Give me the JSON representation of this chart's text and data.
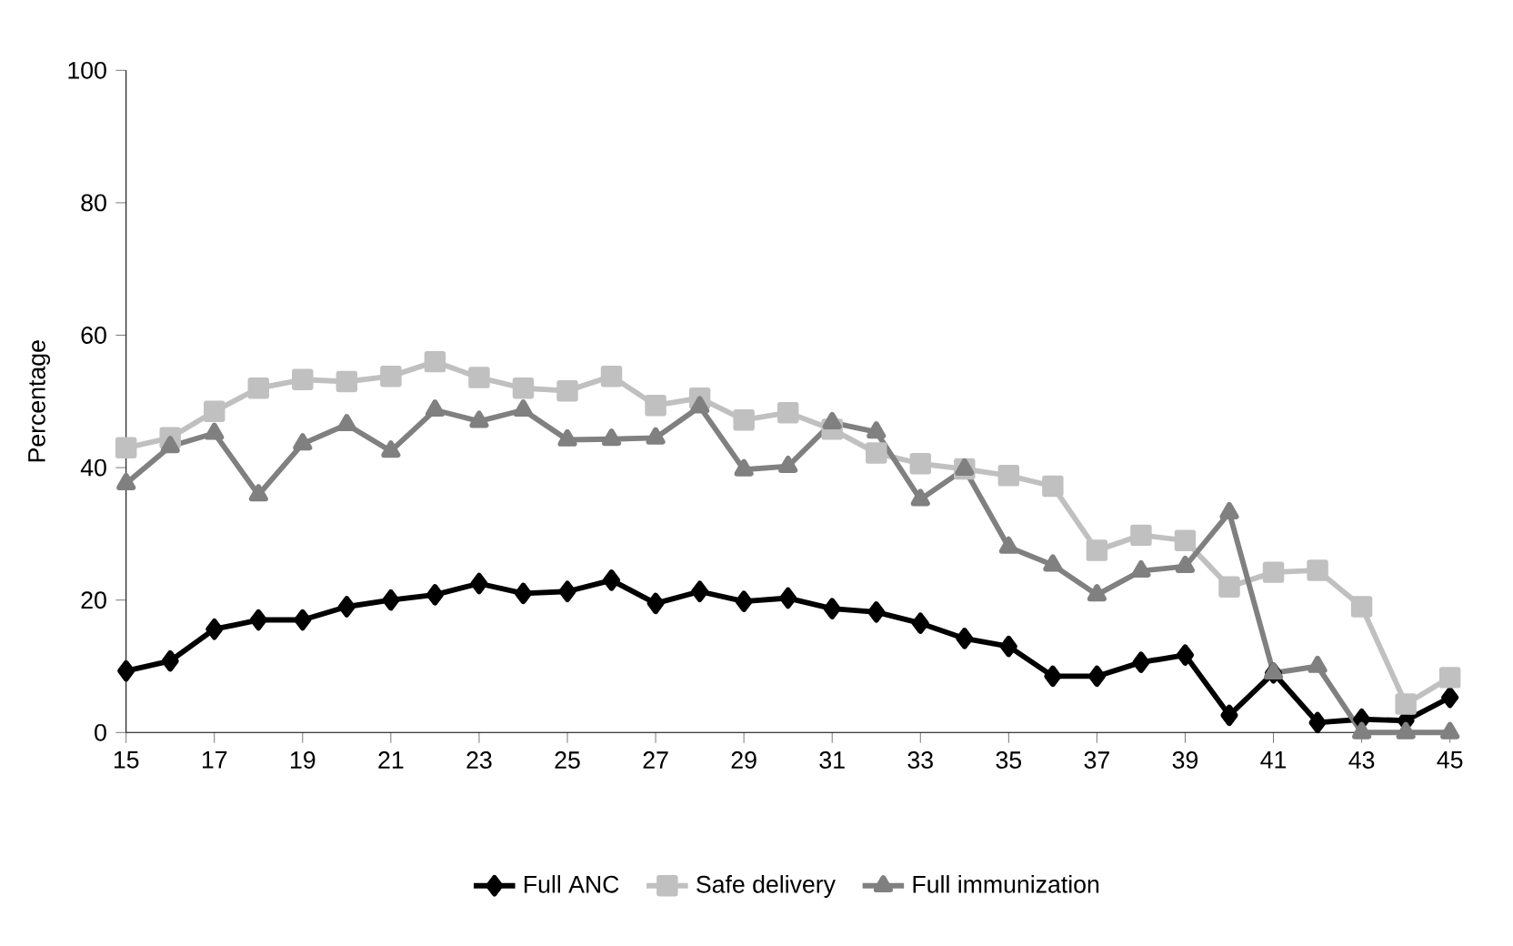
{
  "chart_data": {
    "type": "line",
    "ylabel": "Percentage",
    "x": [
      15,
      16,
      17,
      18,
      19,
      20,
      21,
      22,
      23,
      24,
      25,
      26,
      27,
      28,
      29,
      30,
      31,
      32,
      33,
      34,
      35,
      36,
      37,
      38,
      39,
      40,
      41,
      42,
      43,
      44,
      45
    ],
    "xlim": [
      15,
      45
    ],
    "xticks": [
      15,
      17,
      19,
      21,
      23,
      25,
      27,
      29,
      31,
      33,
      35,
      37,
      39,
      41,
      43,
      45
    ],
    "ylim": [
      0,
      100
    ],
    "yticks": [
      0,
      20,
      40,
      60,
      80,
      100
    ],
    "grid": false,
    "legend": "bottom",
    "series": [
      {
        "name": "Full ANC",
        "color": "#000000",
        "marker": "diamond",
        "values": [
          9.3,
          10.8,
          15.6,
          17,
          17,
          19,
          20,
          20.8,
          22.5,
          21,
          21.3,
          23,
          19.5,
          21.3,
          19.8,
          20.3,
          18.7,
          18.2,
          16.5,
          14.2,
          13,
          8.5,
          8.5,
          10.6,
          11.7,
          2.6,
          9,
          1.5,
          2,
          1.8,
          5.3
        ]
      },
      {
        "name": "Safe delivery",
        "color": "#c0c0c0",
        "marker": "square",
        "values": [
          43,
          44.5,
          48.5,
          52,
          53.3,
          53,
          53.8,
          56,
          53.6,
          52,
          51.6,
          53.8,
          49.4,
          50.5,
          47.2,
          48.3,
          45.8,
          42.2,
          40.6,
          39.8,
          38.8,
          37.2,
          27.5,
          29.8,
          29,
          22,
          24.2,
          24.5,
          19,
          4.3,
          8.3
        ]
      },
      {
        "name": "Full immunization",
        "color": "#808080",
        "marker": "triangle",
        "values": [
          37.6,
          43.2,
          45.2,
          35.9,
          43.6,
          46.5,
          42.5,
          48.7,
          47,
          48.7,
          44.2,
          44.3,
          44.5,
          49.2,
          39.7,
          40.2,
          46.8,
          45.4,
          35.2,
          39.8,
          28,
          25.3,
          20.8,
          24.4,
          25.1,
          33.2,
          9,
          10,
          0,
          0,
          0
        ]
      }
    ]
  }
}
